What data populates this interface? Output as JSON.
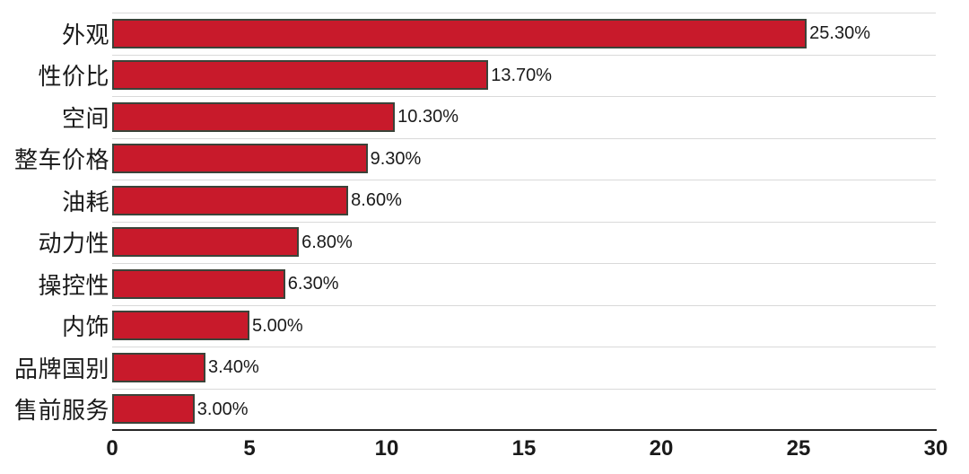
{
  "chart_data": {
    "type": "bar",
    "orientation": "horizontal",
    "title": "",
    "xlabel": "",
    "ylabel": "",
    "xlim": [
      0,
      30
    ],
    "x_ticks": [
      "0",
      "5",
      "10",
      "15",
      "20",
      "25",
      "30"
    ],
    "grid": "horizontal light-gray category separator lines only, no vertical gridlines",
    "legend": "none",
    "categories": [
      "外观",
      "性价比",
      "空间",
      "整车价格",
      "油耗",
      "动力性",
      "操控性",
      "内饰",
      "品牌国别",
      "售前服务"
    ],
    "values": [
      25.3,
      13.7,
      10.3,
      9.3,
      8.6,
      6.8,
      6.3,
      5.0,
      3.4,
      3.0
    ],
    "data_labels": [
      "25.30%",
      "13.70%",
      "10.30%",
      "9.30%",
      "8.60%",
      "6.80%",
      "6.30%",
      "5.00%",
      "3.40%",
      "3.00%"
    ]
  },
  "colors": {
    "bar_fill": "#C81A2B",
    "bar_border": "#3B4339",
    "gridline": "#D9D9D9",
    "axis_line": "#262626",
    "text": "#1A1A1A",
    "background": "#FFFFFF"
  }
}
